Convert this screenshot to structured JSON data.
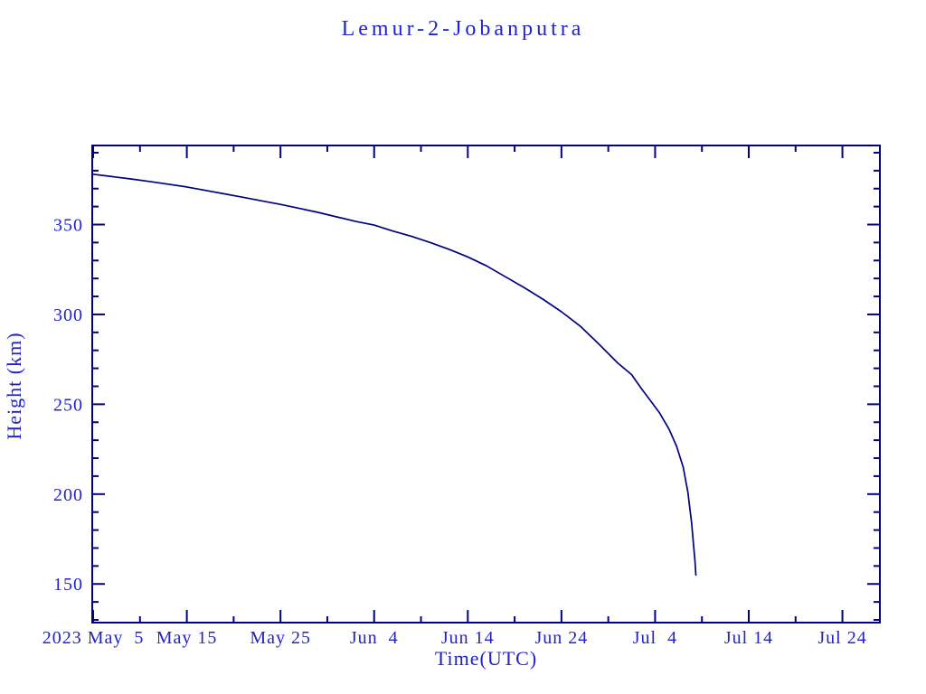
{
  "page": {
    "background": "#ffffff"
  },
  "chart_data": {
    "type": "line",
    "title": "Lemur-2-Jobanputra",
    "xlabel": "Time(UTC)",
    "ylabel": "Height (km)",
    "line_color": "#000080",
    "text_color": "#2222c8",
    "grid": false,
    "legend": "none",
    "x_unit": "days since first labeled tick (2023 May 5, UTC)",
    "x_range_days": [
      -0.1,
      84.0
    ],
    "ylim": [
      128.5,
      394.0
    ],
    "x_major_ticks_days": [
      0,
      10,
      20,
      30,
      40,
      50,
      60,
      70,
      80
    ],
    "x_minor_ticks_days": [
      5,
      15,
      25,
      35,
      45,
      55,
      65,
      75
    ],
    "x_tick_labels": [
      "2023 May  5",
      "May 15",
      "May 25",
      "Jun  4",
      "Jun 14",
      "Jun 24",
      "Jul  4",
      "Jul 14",
      "Jul 24"
    ],
    "y_major_ticks": [
      150,
      200,
      250,
      300,
      350
    ],
    "y_tick_labels": [
      "150",
      "200",
      "250",
      "300",
      "350"
    ],
    "y_minor_tick_step": 10,
    "y_minor_tick_range": [
      130,
      390
    ],
    "series": [
      {
        "name": "Lemur-2-Jobanputra",
        "points": [
          [
            -0.1,
            378.2
          ],
          [
            0,
            378.0
          ],
          [
            2,
            376.7
          ],
          [
            4,
            375.4
          ],
          [
            6,
            374.0
          ],
          [
            8,
            372.5
          ],
          [
            10,
            370.9
          ],
          [
            12,
            369.0
          ],
          [
            14,
            367.1
          ],
          [
            16,
            365.2
          ],
          [
            18,
            363.2
          ],
          [
            20,
            361.2
          ],
          [
            22,
            359.0
          ],
          [
            24,
            356.8
          ],
          [
            26,
            354.3
          ],
          [
            28,
            351.8
          ],
          [
            30,
            349.7
          ],
          [
            32,
            346.4
          ],
          [
            34,
            343.4
          ],
          [
            36,
            340.0
          ],
          [
            38,
            336.2
          ],
          [
            40,
            332.0
          ],
          [
            42,
            327.0
          ],
          [
            44,
            321.0
          ],
          [
            46,
            315.0
          ],
          [
            48,
            308.5
          ],
          [
            50,
            301.5
          ],
          [
            52,
            293.5
          ],
          [
            54,
            283.5
          ],
          [
            56,
            273.0
          ],
          [
            57.5,
            266.5
          ],
          [
            58.5,
            259.0
          ],
          [
            59.5,
            252.0
          ],
          [
            60.5,
            245.0
          ],
          [
            61.5,
            236.0
          ],
          [
            62.3,
            226.5
          ],
          [
            63.0,
            215.0
          ],
          [
            63.5,
            201.0
          ],
          [
            63.9,
            184.0
          ],
          [
            64.1,
            172.0
          ],
          [
            64.25,
            163.0
          ],
          [
            64.35,
            155.0
          ]
        ]
      }
    ]
  }
}
